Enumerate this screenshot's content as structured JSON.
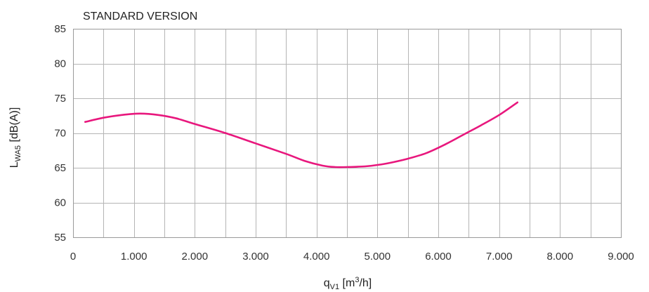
{
  "chart_data": {
    "type": "line",
    "title": "STANDARD VERSION",
    "xlabel": {
      "base": "q",
      "sub": "V1",
      "rest": " [m",
      "sup": "3",
      "end": "/h]"
    },
    "ylabel": {
      "base": "L",
      "sub": "WA5",
      "rest": " [dB(A)]"
    },
    "xlim": [
      0,
      9000
    ],
    "ylim": [
      55,
      85
    ],
    "grid": true,
    "x_ticks": [
      {
        "value": 0,
        "label": "0"
      },
      {
        "value": 1000,
        "label": "1.000"
      },
      {
        "value": 2000,
        "label": "2.000"
      },
      {
        "value": 3000,
        "label": "3.000"
      },
      {
        "value": 4000,
        "label": "4.000"
      },
      {
        "value": 5000,
        "label": "5.000"
      },
      {
        "value": 6000,
        "label": "6.000"
      },
      {
        "value": 7000,
        "label": "7.000"
      },
      {
        "value": 8000,
        "label": "8.000"
      },
      {
        "value": 9000,
        "label": "9.000"
      }
    ],
    "x_minor_step": 500,
    "y_ticks": [
      {
        "value": 55,
        "label": "55"
      },
      {
        "value": 60,
        "label": "60"
      },
      {
        "value": 65,
        "label": "65"
      },
      {
        "value": 70,
        "label": "70"
      },
      {
        "value": 75,
        "label": "75"
      },
      {
        "value": 80,
        "label": "80"
      },
      {
        "value": 85,
        "label": "85"
      }
    ],
    "series": [
      {
        "color": "#e8177d",
        "x": [
          200,
          500,
          800,
          1100,
          1400,
          1700,
          2000,
          2500,
          3000,
          3500,
          3800,
          4100,
          4300,
          4500,
          4800,
          5000,
          5200,
          5500,
          5800,
          6100,
          6400,
          6700,
          7000,
          7300
        ],
        "y": [
          71.6,
          72.2,
          72.6,
          72.8,
          72.6,
          72.1,
          71.3,
          70.0,
          68.5,
          67.0,
          66.0,
          65.3,
          65.1,
          65.1,
          65.2,
          65.4,
          65.7,
          66.3,
          67.1,
          68.3,
          69.7,
          71.1,
          72.6,
          74.4
        ]
      }
    ]
  }
}
